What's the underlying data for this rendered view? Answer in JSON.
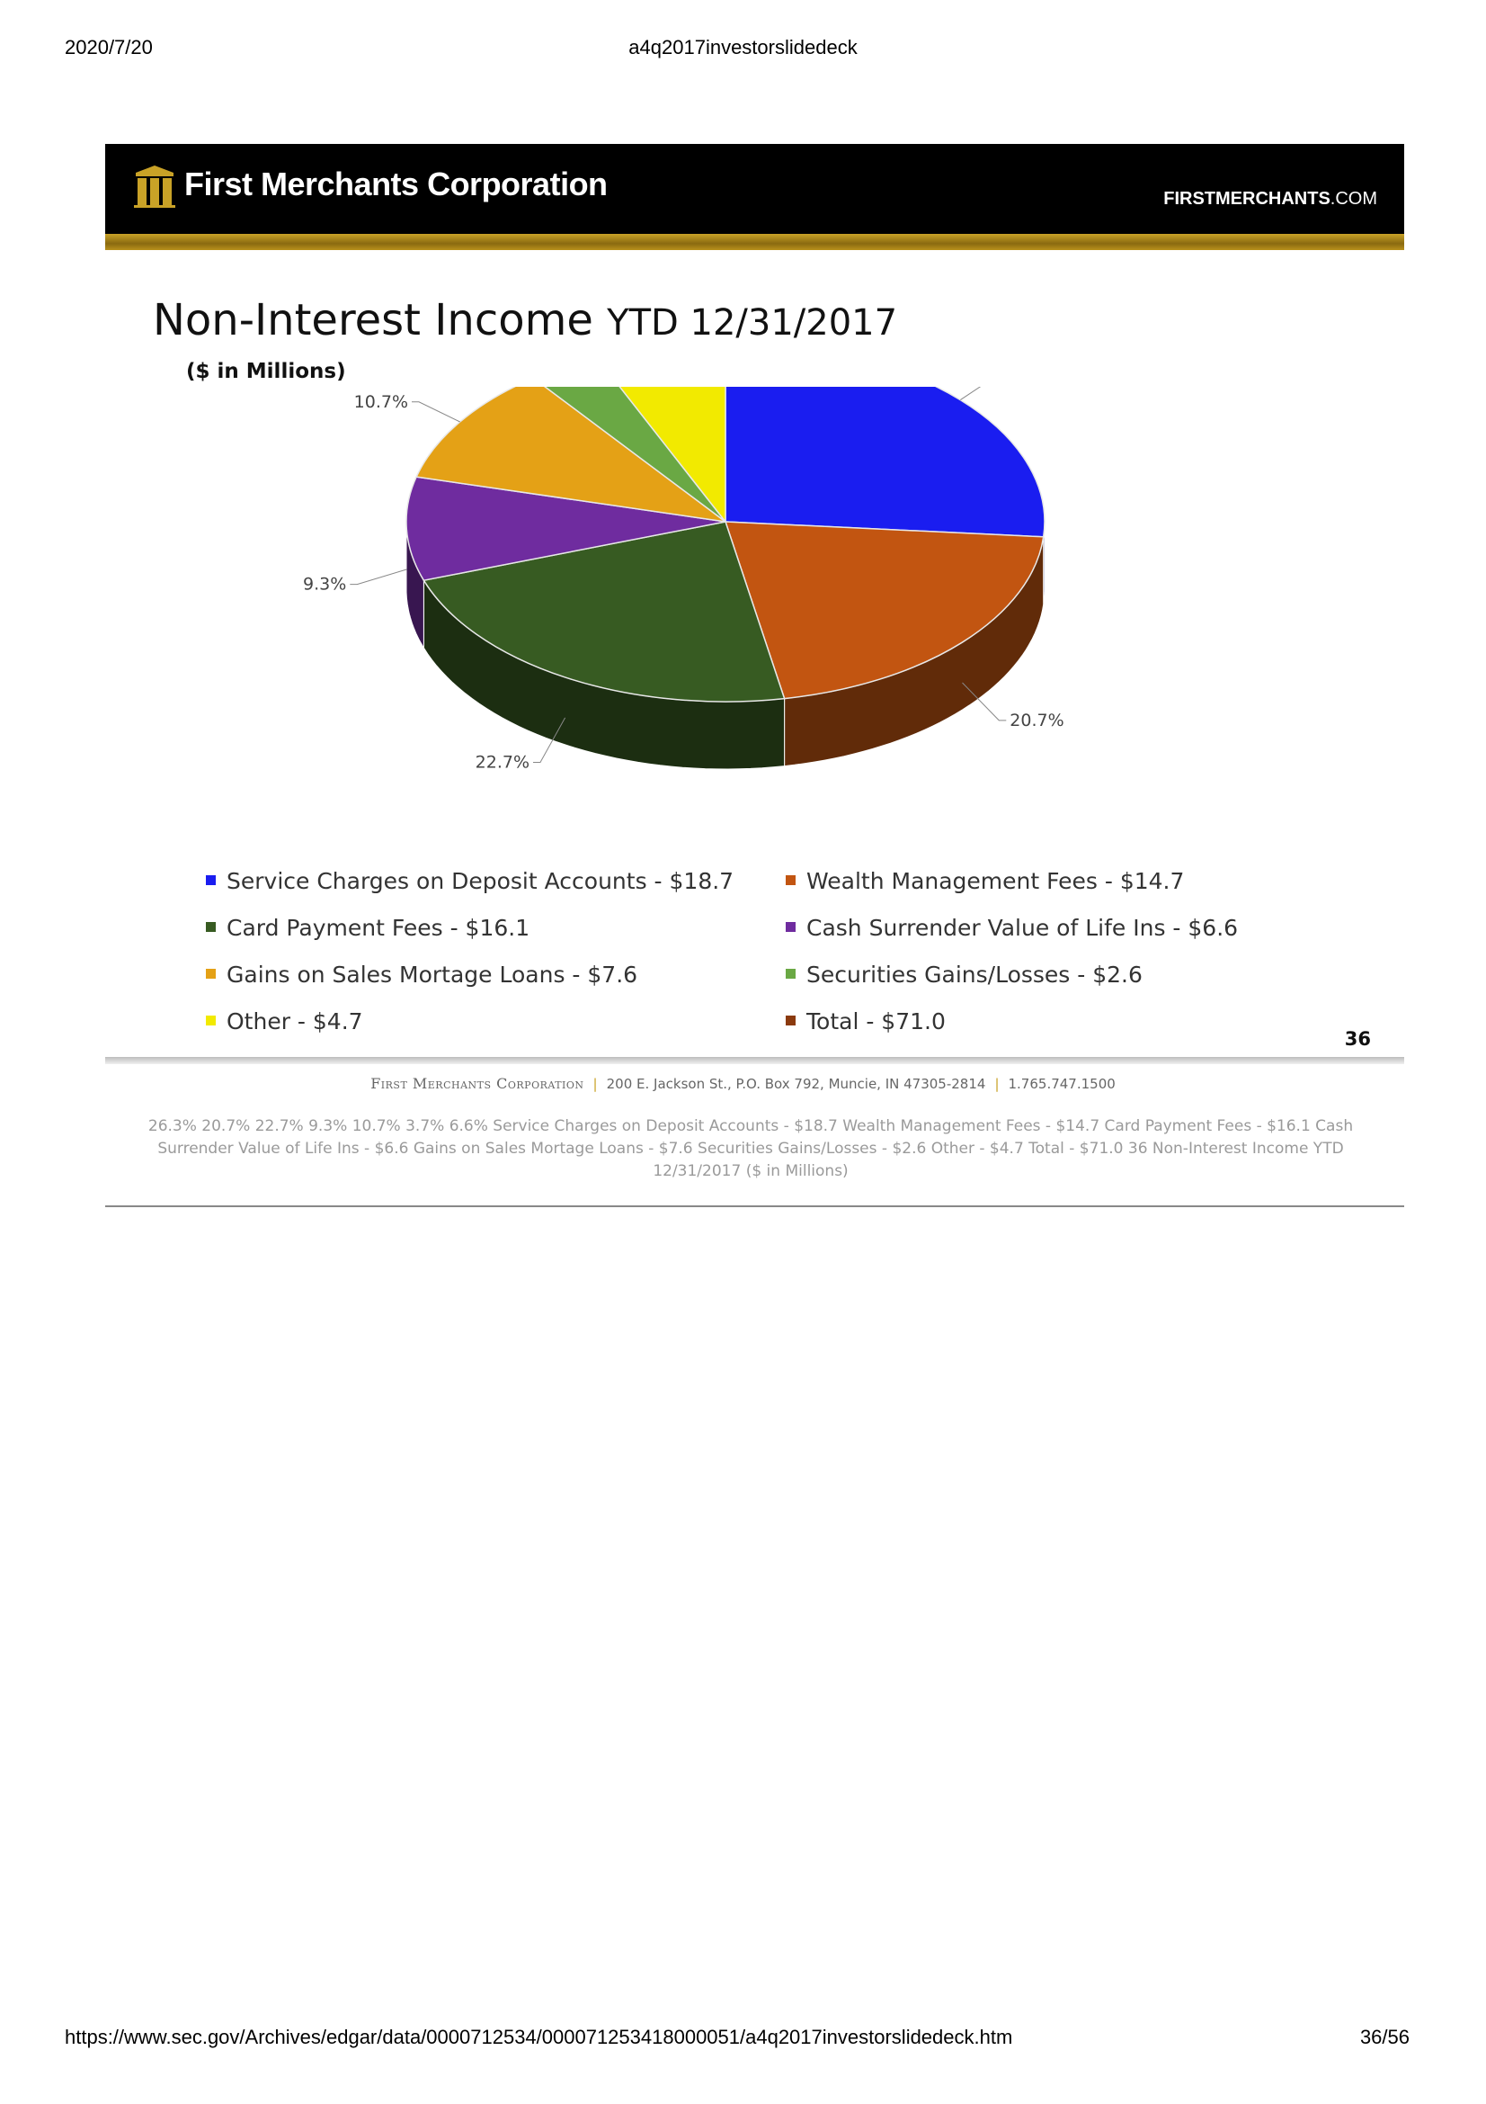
{
  "print_header": {
    "date": "2020/7/20",
    "title": "a4q2017investorslidedeck"
  },
  "print_footer": {
    "url": "https://www.sec.gov/Archives/edgar/data/0000712534/000071253418000051/a4q2017investorslidedeck.htm",
    "page": "36/56"
  },
  "banner": {
    "company": "First Merchants Corporation",
    "site_main": "FIRSTMERCHANTS",
    "site_suffix": ".COM"
  },
  "slide": {
    "title_main": "Non-Interest Income",
    "title_ytd": "YTD 12/31/2017",
    "subtitle": "($ in Millions)",
    "number": "36"
  },
  "chart_data": {
    "type": "pie",
    "title": "Non-Interest Income YTD 12/31/2017",
    "subtitle": "($ in Millions)",
    "style": "3d",
    "slices": [
      {
        "label": "Service Charges on Deposit Accounts - $18.7",
        "value": 18.7,
        "pct": "26.3%",
        "color": "#1a1df0"
      },
      {
        "label": "Wealth Management Fees - $14.7",
        "value": 14.7,
        "pct": "20.7%",
        "color": "#c25511"
      },
      {
        "label": "Card Payment Fees - $16.1",
        "value": 16.1,
        "pct": "22.7%",
        "color": "#375b22"
      },
      {
        "label": "Cash Surrender Value of Life Ins - $6.6",
        "value": 6.6,
        "pct": "9.3%",
        "color": "#6f2c9f"
      },
      {
        "label": "Gains on Sales Mortage Loans - $7.6",
        "value": 7.6,
        "pct": "10.7%",
        "color": "#e4a116"
      },
      {
        "label": "Securities Gains/Losses - $2.6",
        "value": 2.6,
        "pct": "3.7%",
        "color": "#6aa844"
      },
      {
        "label": "Other - $4.7",
        "value": 4.7,
        "pct": "6.6%",
        "color": "#f2ea00"
      }
    ],
    "legend": [
      {
        "label": "Service Charges on Deposit Accounts - $18.7",
        "color": "#1a1df0"
      },
      {
        "label": "Wealth Management Fees - $14.7",
        "color": "#c25511"
      },
      {
        "label": "Card Payment Fees - $16.1",
        "color": "#375b22"
      },
      {
        "label": "Cash Surrender Value of Life Ins - $6.6",
        "color": "#6f2c9f"
      },
      {
        "label": "Gains on Sales Mortage Loans - $7.6",
        "color": "#e4a116"
      },
      {
        "label": "Securities Gains/Losses - $2.6",
        "color": "#6aa844"
      },
      {
        "label": "Other - $4.7",
        "color": "#f2ea00"
      },
      {
        "label": "Total - $71.0",
        "color": "#8b3a0e"
      }
    ],
    "legend_position": "bottom"
  },
  "slide_footer": {
    "corp": "First Merchants Corporation",
    "address": "200 E. Jackson St., P.O. Box 792, Muncie, IN 47305-2814",
    "phone": "1.765.747.1500"
  },
  "alt_text": "26.3%  20.7%  22.7%  9.3%  10.7%  3.7% 6.6%  Service Charges on Deposit Accounts - $18.7 Wealth Management Fees - $14.7 Card Payment Fees - $16.1 Cash Surrender Value of Life Ins - $6.6 Gains on Sales Mortage Loans - $7.6 Securities Gains/Losses - $2.6 Other - $4.7 Total - $71.0 36  Non-Interest Income YTD 12/31/2017  ($ in Millions)"
}
